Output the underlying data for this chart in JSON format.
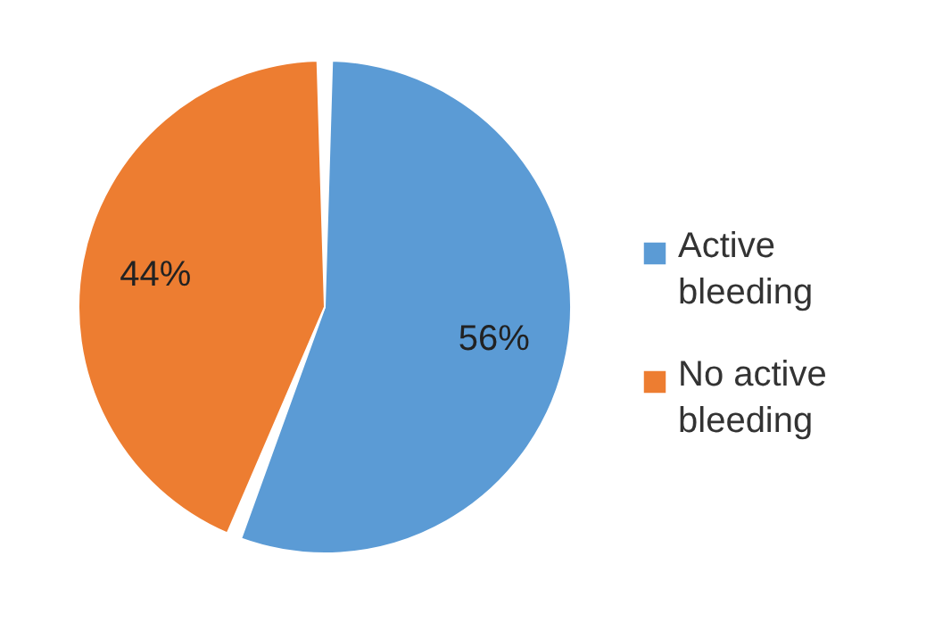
{
  "chart_data": {
    "type": "pie",
    "categories": [
      "Active bleeding",
      "No active bleeding"
    ],
    "values": [
      56,
      44
    ],
    "colors": [
      "#5b9bd5",
      "#ed7d31"
    ],
    "value_labels": [
      "56%",
      "44%"
    ],
    "legend": "right"
  }
}
